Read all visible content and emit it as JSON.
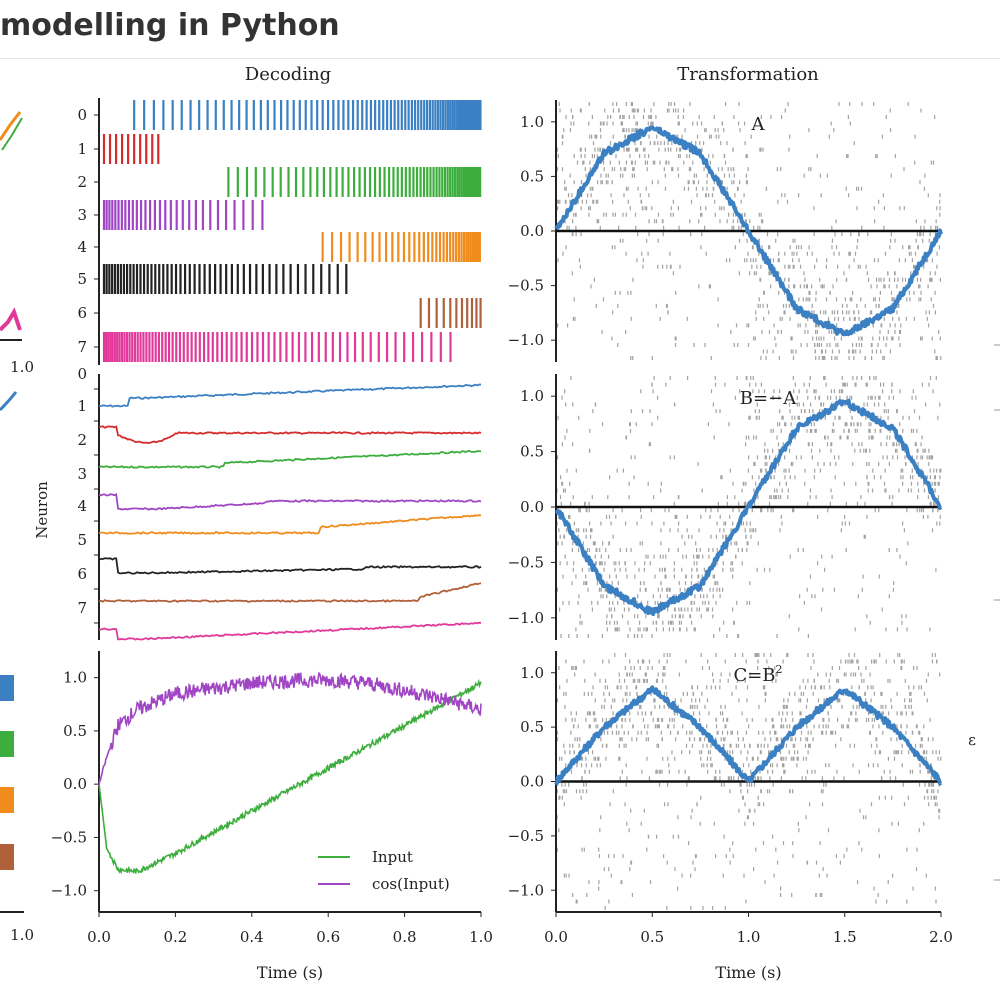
{
  "page": {
    "title": "modelling in Python"
  },
  "columns": {
    "decoding": "Decoding",
    "transformation": "Transformation"
  },
  "colors": {
    "blue": "#3b80c2",
    "red": "#d62b2b",
    "green": "#3dae3d",
    "purple": "#a046c4",
    "orange": "#f08c1c",
    "black": "#222222",
    "brown": "#b0613a",
    "pink": "#e0399a",
    "gray": "#888888"
  },
  "chart_data": [
    {
      "id": "decoding-raster",
      "type": "scatter",
      "title": "Decoding",
      "ytick_labels": [
        "0",
        "1",
        "2",
        "3",
        "4",
        "5",
        "6",
        "7"
      ],
      "xlim": [
        0,
        1.0
      ],
      "series": [
        {
          "neuron": "0",
          "color": "blue",
          "first_spike": 0.08,
          "rate_start": 0.25,
          "rate_end": 1.0,
          "active_to": 1.0
        },
        {
          "neuron": "1",
          "color": "red",
          "first_spike": 0.0,
          "rate_start": 0.6,
          "rate_end": 0.6,
          "active_to": 0.16
        },
        {
          "neuron": "2",
          "color": "green",
          "first_spike": 0.33,
          "rate_start": 0.3,
          "rate_end": 1.0,
          "active_to": 1.0
        },
        {
          "neuron": "3",
          "color": "purple",
          "first_spike": 0.0,
          "rate_start": 0.9,
          "rate_end": 0.2,
          "active_to": 0.44
        },
        {
          "neuron": "4",
          "color": "orange",
          "first_spike": 0.58,
          "rate_start": 0.3,
          "rate_end": 1.0,
          "active_to": 1.0
        },
        {
          "neuron": "5",
          "color": "black",
          "first_spike": 0.0,
          "rate_start": 0.9,
          "rate_end": 0.35,
          "active_to": 0.65
        },
        {
          "neuron": "6",
          "color": "brown",
          "first_spike": 0.84,
          "rate_start": 0.4,
          "rate_end": 0.8,
          "active_to": 1.0
        },
        {
          "neuron": "7",
          "color": "pink",
          "first_spike": 0.0,
          "rate_start": 0.95,
          "rate_end": 0.25,
          "active_to": 0.93
        }
      ]
    },
    {
      "id": "decoding-voltage",
      "type": "line",
      "ylabel": "Neuron",
      "ytick_labels": [
        "0",
        "1",
        "2",
        "3",
        "4",
        "5",
        "6",
        "7"
      ],
      "xlim": [
        0,
        1.0
      ]
    },
    {
      "id": "decoding-output",
      "type": "line",
      "xlabel": "Time (s)",
      "xlim": [
        0,
        1.0
      ],
      "ylim": [
        -1.2,
        1.25
      ],
      "xticks": [
        "0.0",
        "0.2",
        "0.4",
        "0.6",
        "0.8",
        "1.0"
      ],
      "yticks": [
        "1.0",
        "0.5",
        "0.0",
        "−0.5",
        "−1.0"
      ],
      "x": [
        0.0,
        0.02,
        0.05,
        0.1,
        0.2,
        0.3,
        0.4,
        0.5,
        0.6,
        0.7,
        0.8,
        0.9,
        1.0
      ],
      "series": [
        {
          "name": "Input",
          "color": "green",
          "values": [
            0.0,
            -0.6,
            -0.8,
            -0.82,
            -0.65,
            -0.45,
            -0.25,
            -0.05,
            0.15,
            0.35,
            0.55,
            0.75,
            0.95
          ]
        },
        {
          "name": "cos(Input)",
          "color": "purple",
          "values": [
            0.0,
            0.25,
            0.55,
            0.7,
            0.85,
            0.9,
            0.95,
            0.97,
            0.98,
            0.95,
            0.88,
            0.8,
            0.7
          ]
        }
      ],
      "legend": "bottom-right"
    },
    {
      "id": "transformation-A",
      "type": "line",
      "title": "Transformation",
      "annotation": "A",
      "xlim": [
        0,
        2.0
      ],
      "ylim": [
        -1.2,
        1.2
      ],
      "yticks": [
        "1.0",
        "0.5",
        "0.0",
        "−0.5",
        "−1.0"
      ],
      "x": [
        0.0,
        0.25,
        0.5,
        0.75,
        1.0,
        1.25,
        1.5,
        1.75,
        2.0
      ],
      "series": [
        {
          "color": "blue",
          "values": [
            0.0,
            0.71,
            0.95,
            0.71,
            0.0,
            -0.71,
            -0.95,
            -0.71,
            0.0
          ]
        }
      ]
    },
    {
      "id": "transformation-B",
      "type": "line",
      "annotation": "B=−A",
      "xlim": [
        0,
        2.0
      ],
      "ylim": [
        -1.2,
        1.2
      ],
      "yticks": [
        "1.0",
        "0.5",
        "0.0",
        "−0.5",
        "−1.0"
      ],
      "x": [
        0.0,
        0.25,
        0.5,
        0.75,
        1.0,
        1.25,
        1.5,
        1.75,
        2.0
      ],
      "series": [
        {
          "color": "blue",
          "values": [
            0.0,
            -0.71,
            -0.95,
            -0.71,
            0.0,
            0.71,
            0.95,
            0.71,
            0.0
          ]
        }
      ]
    },
    {
      "id": "transformation-C",
      "type": "line",
      "annotation": "C=B",
      "annotation_sup": "2",
      "xlabel": "Time (s)",
      "xlim": [
        0,
        2.0
      ],
      "ylim": [
        -1.2,
        1.2
      ],
      "xticks": [
        "0.0",
        "0.5",
        "1.0",
        "1.5",
        "2.0"
      ],
      "yticks": [
        "1.0",
        "0.5",
        "0.0",
        "−0.5",
        "−1.0"
      ],
      "x": [
        0.0,
        0.25,
        0.5,
        0.75,
        1.0,
        1.25,
        1.5,
        1.75,
        2.0
      ],
      "series": [
        {
          "color": "blue",
          "values": [
            0.0,
            0.5,
            0.85,
            0.5,
            0.0,
            0.5,
            0.85,
            0.5,
            0.0
          ]
        }
      ]
    }
  ],
  "left_fragments": {
    "tick_mid": "1.0",
    "tick_bottom": "1.0"
  },
  "right_fragments": {
    "label": "ε"
  }
}
